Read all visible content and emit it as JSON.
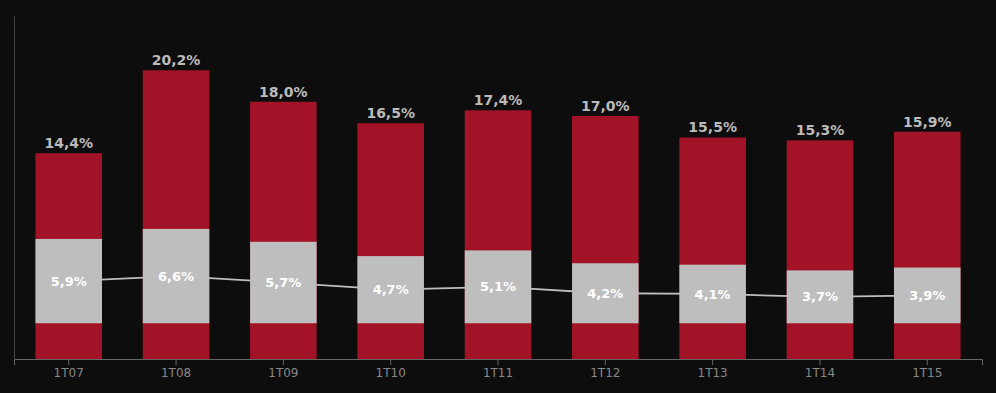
{
  "chart_data": {
    "type": "bar",
    "categories": [
      "1T07",
      "1T08",
      "1T09",
      "1T10",
      "1T11",
      "1T12",
      "1T13",
      "1T14",
      "1T15"
    ],
    "series": [
      {
        "color": "#a31328",
        "values": [
          14.4,
          20.2,
          18.0,
          16.5,
          17.4,
          17.0,
          15.5,
          15.3,
          15.9
        ],
        "value_labels": [
          "14,4%",
          "20,2%",
          "18,0%",
          "16,5%",
          "17,4%",
          "17,0%",
          "15,5%",
          "15,3%",
          "15,9%"
        ]
      },
      {
        "color": "#bebebe",
        "bottom": 2.5,
        "values": [
          5.9,
          6.6,
          5.7,
          4.7,
          5.1,
          4.2,
          4.1,
          3.7,
          3.9
        ],
        "value_labels": [
          "5,9%",
          "6,6%",
          "5,7%",
          "4,7%",
          "5,1%",
          "4,2%",
          "4,1%",
          "3,7%",
          "3,9%"
        ]
      }
    ],
    "ylim": [
      0,
      24
    ],
    "data_labels": true,
    "tick_labels": "x"
  }
}
